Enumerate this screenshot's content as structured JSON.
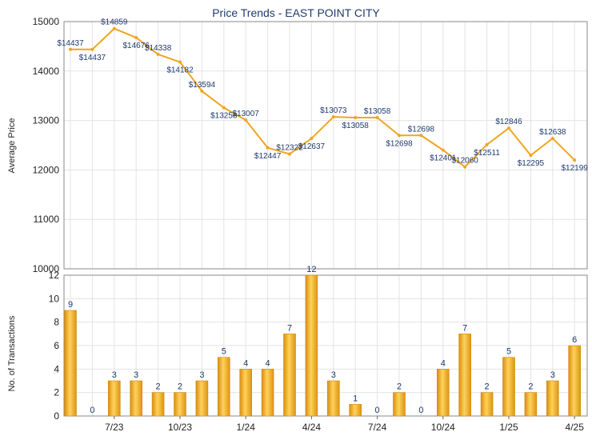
{
  "title": "Price Trends - EAST POINT CITY",
  "colors": {
    "line": "#f0a520",
    "bar": "#f2b32e",
    "bar_edge": "#d08a10",
    "label": "#1f3a6e",
    "grid": "#e3e3e3"
  },
  "chart_data": [
    {
      "type": "line",
      "ylabel": "Average Price",
      "ylim": [
        10000,
        15000
      ],
      "yticks": [
        "10000",
        "11000",
        "12000",
        "13000",
        "14000",
        "15000"
      ],
      "grid": true,
      "legend": "none",
      "values": [
        14437,
        14437,
        14859,
        14676,
        14338,
        14182,
        13594,
        13258,
        13007,
        12447,
        12322,
        12637,
        13073,
        13058,
        13058,
        12698,
        12698,
        12401,
        12060,
        12511,
        12846,
        12295,
        12638,
        12199
      ],
      "labels": [
        "$14437",
        "$14437",
        "$14859",
        "$14676",
        "$14338",
        "$14182",
        "$13594",
        "$13258",
        "$13007",
        "$12447",
        "$12322",
        "$12637",
        "$13073",
        "$13058",
        "$13058",
        "$12698",
        "$12698",
        "$12401",
        "$12060",
        "$12511",
        "$12846",
        "$12295",
        "$12638",
        "$12199"
      ]
    },
    {
      "type": "bar",
      "ylabel": "No. of Transactions",
      "ylim": [
        0,
        12
      ],
      "yticks": [
        "0",
        "2",
        "4",
        "6",
        "8",
        "10",
        "12"
      ],
      "grid": true,
      "legend": "none",
      "values": [
        9,
        0,
        3,
        3,
        2,
        2,
        3,
        5,
        4,
        4,
        7,
        12,
        3,
        1,
        0,
        2,
        0,
        4,
        7,
        2,
        5,
        2,
        3,
        6
      ],
      "xticks": [
        "7/23",
        "10/23",
        "1/24",
        "4/24",
        "7/24",
        "10/24",
        "1/25",
        "4/25"
      ]
    }
  ]
}
